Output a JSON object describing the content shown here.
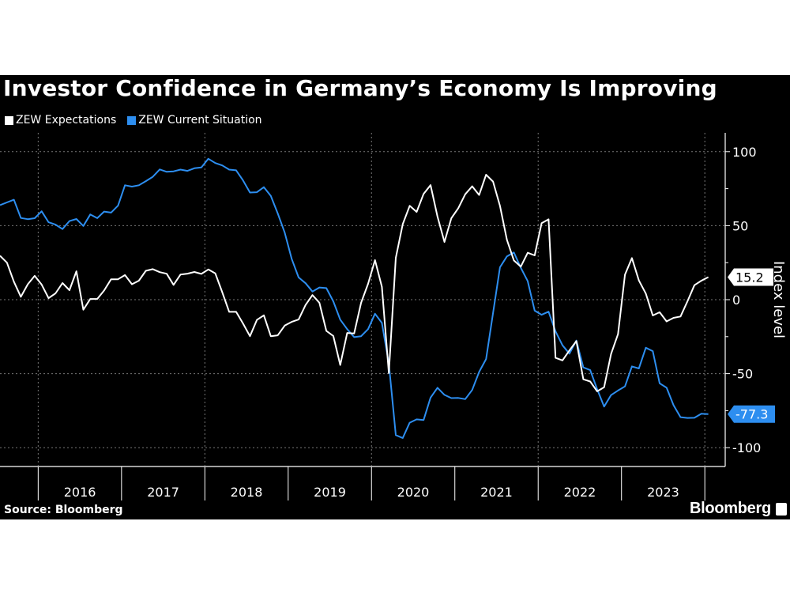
{
  "title": "Investor Confidence in Germany’s Economy Is Improving",
  "source": "Source: Bloomberg",
  "brand": "Bloomberg",
  "chart_data": {
    "type": "line",
    "title": "Investor Confidence in Germany’s Economy Is Improving",
    "ylabel": "Index level",
    "xlabel": "",
    "ylim": [
      -110,
      110
    ],
    "yticks": [
      "100",
      "50",
      "0",
      "-50",
      "-100"
    ],
    "ytick_values": [
      100,
      50,
      0,
      -50,
      -100
    ],
    "xtick_labels": [
      "2016",
      "2017",
      "2018",
      "2019",
      "2020",
      "2021",
      "2022",
      "2023"
    ],
    "grid": true,
    "legend": "top-left",
    "colors": {
      "expectations": "#ffffff",
      "current": "#2d8ef0"
    },
    "x": [
      "2015-07",
      "2015-08",
      "2015-09",
      "2015-10",
      "2015-11",
      "2015-12",
      "2016-01",
      "2016-02",
      "2016-03",
      "2016-04",
      "2016-05",
      "2016-06",
      "2016-07",
      "2016-08",
      "2016-09",
      "2016-10",
      "2016-11",
      "2016-12",
      "2017-01",
      "2017-02",
      "2017-03",
      "2017-04",
      "2017-05",
      "2017-06",
      "2017-07",
      "2017-08",
      "2017-09",
      "2017-10",
      "2017-11",
      "2017-12",
      "2018-01",
      "2018-02",
      "2018-03",
      "2018-04",
      "2018-05",
      "2018-06",
      "2018-07",
      "2018-08",
      "2018-09",
      "2018-10",
      "2018-11",
      "2018-12",
      "2019-01",
      "2019-02",
      "2019-03",
      "2019-04",
      "2019-05",
      "2019-06",
      "2019-07",
      "2019-08",
      "2019-09",
      "2019-10",
      "2019-11",
      "2019-12",
      "2020-01",
      "2020-02",
      "2020-03",
      "2020-04",
      "2020-05",
      "2020-06",
      "2020-07",
      "2020-08",
      "2020-09",
      "2020-10",
      "2020-11",
      "2020-12",
      "2021-01",
      "2021-02",
      "2021-03",
      "2021-04",
      "2021-05",
      "2021-06",
      "2021-07",
      "2021-08",
      "2021-09",
      "2021-10",
      "2021-11",
      "2021-12",
      "2022-01",
      "2022-02",
      "2022-03",
      "2022-04",
      "2022-05",
      "2022-06",
      "2022-07",
      "2022-08",
      "2022-09",
      "2022-10",
      "2022-11",
      "2022-12",
      "2023-01",
      "2023-02",
      "2023-03",
      "2023-04",
      "2023-05",
      "2023-06",
      "2023-07",
      "2023-08",
      "2023-09",
      "2023-10",
      "2023-11",
      "2023-12",
      "2024-01"
    ],
    "series": [
      {
        "name": "ZEW Expectations",
        "last_label": "15.2",
        "values": [
          29.7,
          25.0,
          12.1,
          1.9,
          10.4,
          16.1,
          10.2,
          1.0,
          4.3,
          11.2,
          6.4,
          19.2,
          -6.8,
          0.5,
          0.5,
          6.2,
          13.8,
          13.8,
          16.6,
          10.4,
          12.8,
          19.5,
          20.6,
          18.6,
          17.5,
          10.0,
          17.0,
          17.6,
          18.7,
          17.4,
          20.4,
          17.8,
          5.1,
          -8.2,
          -8.2,
          -16.1,
          -24.7,
          -13.7,
          -10.6,
          -24.7,
          -24.1,
          -17.5,
          -15.0,
          -13.4,
          -3.6,
          3.1,
          -2.1,
          -21.1,
          -24.5,
          -44.1,
          -22.5,
          -22.8,
          -2.1,
          10.7,
          26.7,
          8.7,
          -49.5,
          28.2,
          51.0,
          63.4,
          59.3,
          71.5,
          77.4,
          56.1,
          39.0,
          55.0,
          61.8,
          71.2,
          76.6,
          70.7,
          84.4,
          79.8,
          63.3,
          40.4,
          26.5,
          22.3,
          31.7,
          29.9,
          51.7,
          54.3,
          -39.3,
          -41.0,
          -34.3,
          -28.0,
          -53.8,
          -55.3,
          -61.9,
          -59.2,
          -36.7,
          -23.3,
          16.9,
          28.1,
          13.0,
          4.1,
          -10.7,
          -8.5,
          -14.7,
          -12.3,
          -11.4,
          -1.1,
          9.8,
          12.8,
          15.2
        ]
      },
      {
        "name": "ZEW Current Situation",
        "last_label": "-77.3",
        "values": [
          63.9,
          65.7,
          67.5,
          55.2,
          54.4,
          55.0,
          59.7,
          52.3,
          50.7,
          47.7,
          53.1,
          54.5,
          49.8,
          57.6,
          55.1,
          59.5,
          58.8,
          63.5,
          77.3,
          76.4,
          77.3,
          80.1,
          83.0,
          88.0,
          86.4,
          86.7,
          87.9,
          87.0,
          88.8,
          89.3,
          95.2,
          92.3,
          90.7,
          87.9,
          87.4,
          80.6,
          72.4,
          72.6,
          76.0,
          70.1,
          58.2,
          45.3,
          27.6,
          15.0,
          11.1,
          5.5,
          8.2,
          7.8,
          -1.1,
          -13.5,
          -19.9,
          -25.3,
          -24.7,
          -19.9,
          -9.5,
          -15.7,
          -43.1,
          -91.5,
          -93.5,
          -83.1,
          -80.9,
          -81.3,
          -66.2,
          -59.5,
          -64.3,
          -66.5,
          -66.4,
          -67.2,
          -61.0,
          -48.8,
          -40.1,
          -9.1,
          21.9,
          29.3,
          31.9,
          21.6,
          12.5,
          -7.4,
          -10.2,
          -8.1,
          -21.4,
          -30.8,
          -36.5,
          -27.6,
          -45.8,
          -47.6,
          -60.5,
          -72.2,
          -64.5,
          -61.4,
          -58.6,
          -45.1,
          -46.5,
          -32.5,
          -34.8,
          -56.5,
          -59.5,
          -71.3,
          -79.4,
          -79.9,
          -79.8,
          -77.1,
          -77.3
        ]
      }
    ]
  }
}
